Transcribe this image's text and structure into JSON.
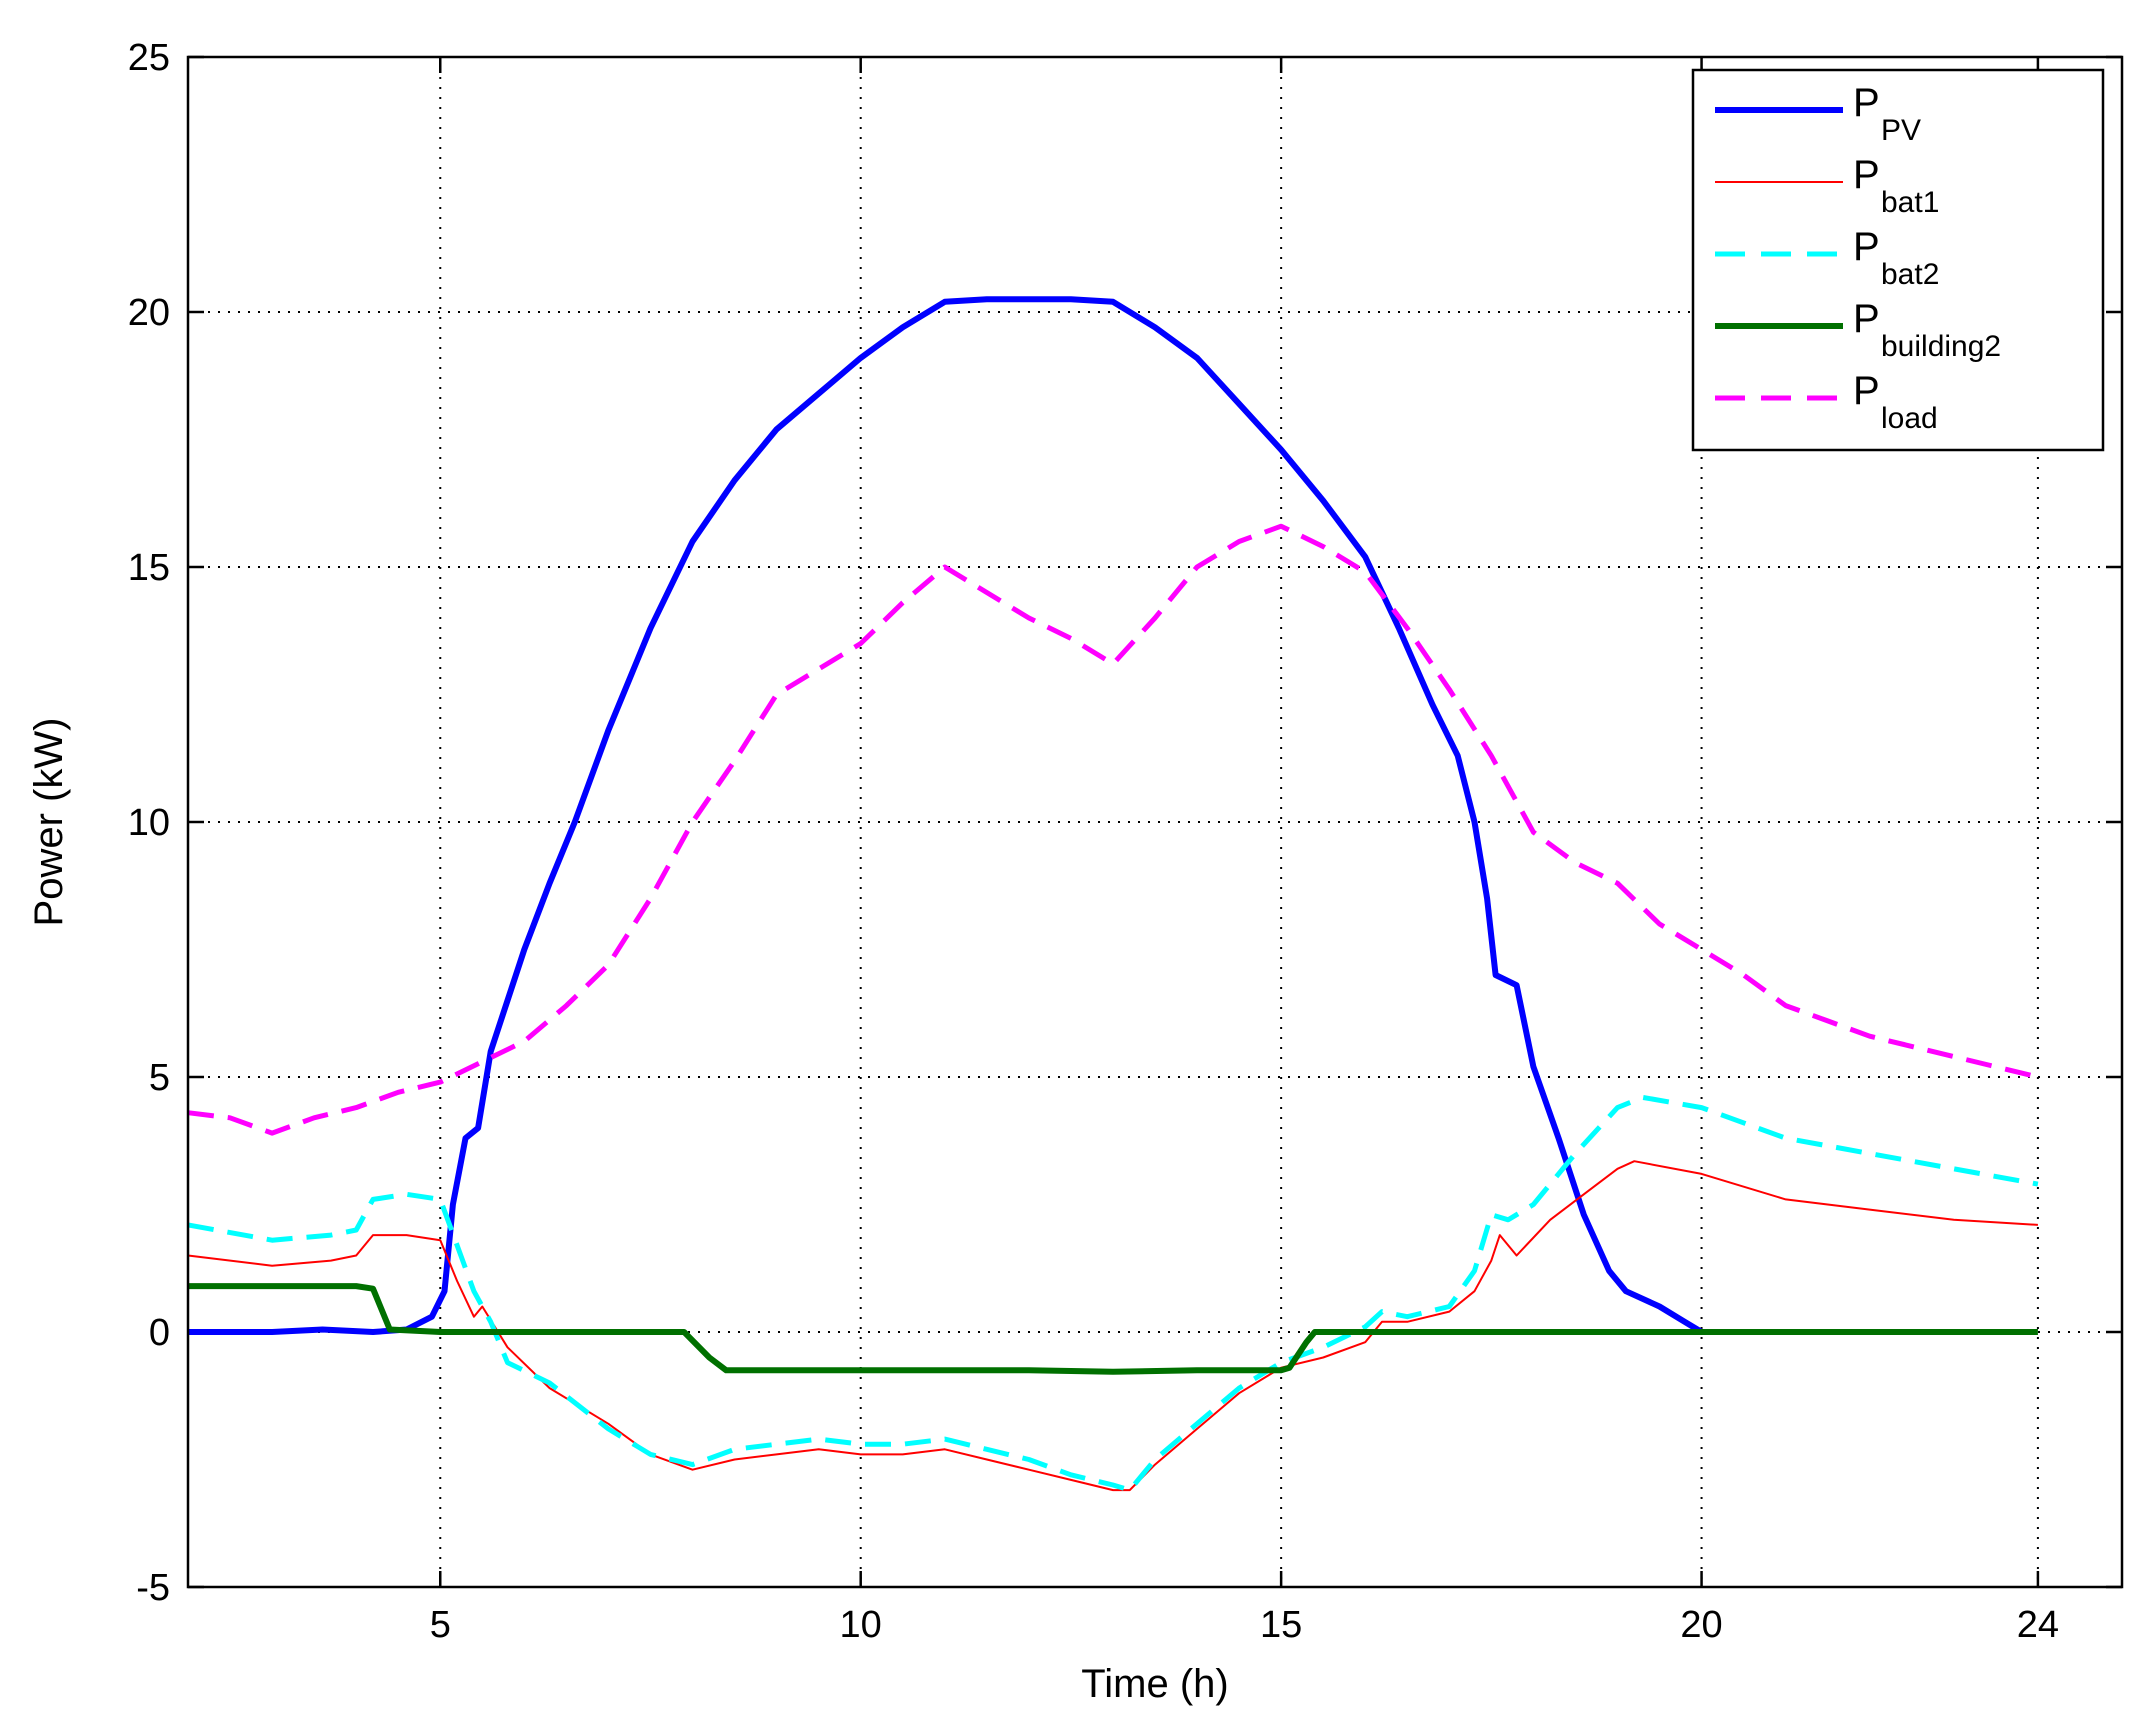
{
  "chart_data": {
    "type": "line",
    "xlabel": "Time (h)",
    "ylabel": "Power (kW)",
    "xlim": [
      2,
      25
    ],
    "ylim": [
      -5,
      25
    ],
    "xticks": [
      5,
      10,
      15,
      20,
      24
    ],
    "yticks": [
      -5,
      0,
      5,
      10,
      15,
      20,
      25
    ],
    "grid": true,
    "legend_position": "top-right",
    "series": [
      {
        "name": "P_PV",
        "legend_main": "P",
        "legend_sub": "PV",
        "color": "#0000ff",
        "style": "solid",
        "width": "thick",
        "points": [
          [
            2,
            0
          ],
          [
            3,
            0
          ],
          [
            3.6,
            0.05
          ],
          [
            4.2,
            0
          ],
          [
            4.6,
            0.05
          ],
          [
            4.9,
            0.3
          ],
          [
            5.05,
            0.8
          ],
          [
            5.15,
            2.5
          ],
          [
            5.3,
            3.8
          ],
          [
            5.45,
            4.0
          ],
          [
            5.6,
            5.5
          ],
          [
            5.8,
            6.5
          ],
          [
            6.0,
            7.5
          ],
          [
            6.3,
            8.8
          ],
          [
            6.6,
            10.0
          ],
          [
            7.0,
            11.8
          ],
          [
            7.5,
            13.8
          ],
          [
            8.0,
            15.5
          ],
          [
            8.5,
            16.7
          ],
          [
            9.0,
            17.7
          ],
          [
            9.5,
            18.4
          ],
          [
            10.0,
            19.1
          ],
          [
            10.5,
            19.7
          ],
          [
            11.0,
            20.2
          ],
          [
            11.5,
            20.25
          ],
          [
            12.0,
            20.25
          ],
          [
            12.5,
            20.25
          ],
          [
            13.0,
            20.2
          ],
          [
            13.5,
            19.7
          ],
          [
            14.0,
            19.1
          ],
          [
            14.5,
            18.2
          ],
          [
            15.0,
            17.3
          ],
          [
            15.5,
            16.3
          ],
          [
            16.0,
            15.2
          ],
          [
            16.4,
            13.8
          ],
          [
            16.8,
            12.3
          ],
          [
            17.1,
            11.3
          ],
          [
            17.3,
            10.0
          ],
          [
            17.45,
            8.5
          ],
          [
            17.55,
            7.0
          ],
          [
            17.8,
            6.8
          ],
          [
            18.0,
            5.2
          ],
          [
            18.3,
            3.8
          ],
          [
            18.6,
            2.3
          ],
          [
            18.9,
            1.2
          ],
          [
            19.1,
            0.8
          ],
          [
            19.5,
            0.5
          ],
          [
            19.8,
            0.2
          ],
          [
            20.0,
            0
          ]
        ]
      },
      {
        "name": "P_bat1",
        "legend_main": "P",
        "legend_sub": "bat1",
        "color": "#ff0000",
        "style": "solid",
        "width": "thin",
        "points": [
          [
            2,
            1.5
          ],
          [
            3,
            1.3
          ],
          [
            3.7,
            1.4
          ],
          [
            4.0,
            1.5
          ],
          [
            4.2,
            1.9
          ],
          [
            4.6,
            1.9
          ],
          [
            5.0,
            1.8
          ],
          [
            5.2,
            1.0
          ],
          [
            5.4,
            0.3
          ],
          [
            5.5,
            0.5
          ],
          [
            5.8,
            -0.3
          ],
          [
            6.3,
            -1.1
          ],
          [
            7.0,
            -1.8
          ],
          [
            7.5,
            -2.4
          ],
          [
            8.0,
            -2.7
          ],
          [
            8.5,
            -2.5
          ],
          [
            9.0,
            -2.4
          ],
          [
            9.5,
            -2.3
          ],
          [
            10.0,
            -2.4
          ],
          [
            10.5,
            -2.4
          ],
          [
            11.0,
            -2.3
          ],
          [
            11.5,
            -2.5
          ],
          [
            12.0,
            -2.7
          ],
          [
            12.5,
            -2.9
          ],
          [
            13.0,
            -3.1
          ],
          [
            13.2,
            -3.1
          ],
          [
            13.5,
            -2.6
          ],
          [
            14.0,
            -1.9
          ],
          [
            14.5,
            -1.2
          ],
          [
            15.0,
            -0.7
          ],
          [
            15.5,
            -0.5
          ],
          [
            16.0,
            -0.2
          ],
          [
            16.2,
            0.2
          ],
          [
            16.5,
            0.2
          ],
          [
            17.0,
            0.4
          ],
          [
            17.3,
            0.8
          ],
          [
            17.5,
            1.4
          ],
          [
            17.6,
            1.9
          ],
          [
            17.8,
            1.5
          ],
          [
            18.2,
            2.2
          ],
          [
            18.6,
            2.7
          ],
          [
            19.0,
            3.2
          ],
          [
            19.2,
            3.35
          ],
          [
            20.0,
            3.1
          ],
          [
            21.0,
            2.6
          ],
          [
            22.0,
            2.4
          ],
          [
            23.0,
            2.2
          ],
          [
            24.0,
            2.1
          ]
        ]
      },
      {
        "name": "P_bat2",
        "legend_main": "P",
        "legend_sub": "bat2",
        "color": "#00ffff",
        "style": "dashed",
        "width": "medium",
        "points": [
          [
            2,
            2.1
          ],
          [
            3,
            1.8
          ],
          [
            3.7,
            1.9
          ],
          [
            4.0,
            2.0
          ],
          [
            4.2,
            2.6
          ],
          [
            4.6,
            2.7
          ],
          [
            5.0,
            2.6
          ],
          [
            5.2,
            1.7
          ],
          [
            5.4,
            0.8
          ],
          [
            5.6,
            0.2
          ],
          [
            5.8,
            -0.6
          ],
          [
            6.3,
            -1.0
          ],
          [
            7.0,
            -1.9
          ],
          [
            7.5,
            -2.4
          ],
          [
            8.0,
            -2.6
          ],
          [
            8.5,
            -2.3
          ],
          [
            9.0,
            -2.2
          ],
          [
            9.5,
            -2.1
          ],
          [
            10.0,
            -2.2
          ],
          [
            10.5,
            -2.2
          ],
          [
            11.0,
            -2.1
          ],
          [
            11.5,
            -2.3
          ],
          [
            12.0,
            -2.5
          ],
          [
            12.5,
            -2.8
          ],
          [
            13.0,
            -3.0
          ],
          [
            13.2,
            -3.1
          ],
          [
            13.5,
            -2.5
          ],
          [
            14.0,
            -1.8
          ],
          [
            14.5,
            -1.1
          ],
          [
            15.0,
            -0.6
          ],
          [
            15.5,
            -0.3
          ],
          [
            16.0,
            0.1
          ],
          [
            16.2,
            0.4
          ],
          [
            16.5,
            0.3
          ],
          [
            17.0,
            0.5
          ],
          [
            17.3,
            1.2
          ],
          [
            17.5,
            2.3
          ],
          [
            17.7,
            2.2
          ],
          [
            18.0,
            2.5
          ],
          [
            18.5,
            3.5
          ],
          [
            19.0,
            4.4
          ],
          [
            19.3,
            4.6
          ],
          [
            20.0,
            4.4
          ],
          [
            21.0,
            3.8
          ],
          [
            22.0,
            3.5
          ],
          [
            23.0,
            3.2
          ],
          [
            24.0,
            2.9
          ]
        ]
      },
      {
        "name": "P_building2",
        "legend_main": "P",
        "legend_sub": "building2",
        "color": "#007000",
        "style": "solid",
        "width": "thick",
        "points": [
          [
            2,
            0.9
          ],
          [
            3,
            0.9
          ],
          [
            4,
            0.9
          ],
          [
            4.2,
            0.85
          ],
          [
            4.4,
            0.05
          ],
          [
            5,
            0
          ],
          [
            6,
            0
          ],
          [
            7,
            0
          ],
          [
            7.9,
            0
          ],
          [
            8.2,
            -0.5
          ],
          [
            8.4,
            -0.75
          ],
          [
            9,
            -0.75
          ],
          [
            10,
            -0.75
          ],
          [
            11,
            -0.75
          ],
          [
            12,
            -0.75
          ],
          [
            13,
            -0.78
          ],
          [
            14,
            -0.75
          ],
          [
            15,
            -0.75
          ],
          [
            15.1,
            -0.7
          ],
          [
            15.3,
            -0.2
          ],
          [
            15.4,
            0
          ],
          [
            16,
            0
          ],
          [
            17,
            0
          ],
          [
            18,
            0
          ],
          [
            19,
            0
          ],
          [
            20,
            0
          ],
          [
            21,
            0
          ],
          [
            22,
            0
          ],
          [
            23,
            0
          ],
          [
            24,
            0
          ]
        ]
      },
      {
        "name": "P_load",
        "legend_main": "P",
        "legend_sub": "load",
        "color": "#ff00ff",
        "style": "dashed",
        "width": "medium",
        "points": [
          [
            2,
            4.3
          ],
          [
            2.5,
            4.2
          ],
          [
            3.0,
            3.9
          ],
          [
            3.5,
            4.2
          ],
          [
            4.0,
            4.4
          ],
          [
            4.5,
            4.7
          ],
          [
            5.0,
            4.9
          ],
          [
            5.5,
            5.3
          ],
          [
            6.0,
            5.7
          ],
          [
            6.5,
            6.4
          ],
          [
            7.0,
            7.2
          ],
          [
            7.5,
            8.5
          ],
          [
            8.0,
            10.0
          ],
          [
            8.5,
            11.2
          ],
          [
            9.0,
            12.5
          ],
          [
            9.5,
            13.0
          ],
          [
            10.0,
            13.5
          ],
          [
            10.5,
            14.3
          ],
          [
            11.0,
            15.0
          ],
          [
            11.5,
            14.5
          ],
          [
            12.0,
            14.0
          ],
          [
            12.5,
            13.6
          ],
          [
            13.0,
            13.1
          ],
          [
            13.5,
            14.0
          ],
          [
            14.0,
            15.0
          ],
          [
            14.5,
            15.5
          ],
          [
            15.0,
            15.8
          ],
          [
            15.5,
            15.4
          ],
          [
            16.0,
            14.9
          ],
          [
            16.5,
            13.8
          ],
          [
            17.0,
            12.6
          ],
          [
            17.5,
            11.3
          ],
          [
            18.0,
            9.8
          ],
          [
            18.5,
            9.2
          ],
          [
            19.0,
            8.8
          ],
          [
            19.5,
            8.0
          ],
          [
            20.0,
            7.5
          ],
          [
            20.5,
            7.0
          ],
          [
            21.0,
            6.4
          ],
          [
            21.5,
            6.1
          ],
          [
            22.0,
            5.8
          ],
          [
            23.0,
            5.4
          ],
          [
            24.0,
            5.0
          ]
        ]
      }
    ]
  }
}
